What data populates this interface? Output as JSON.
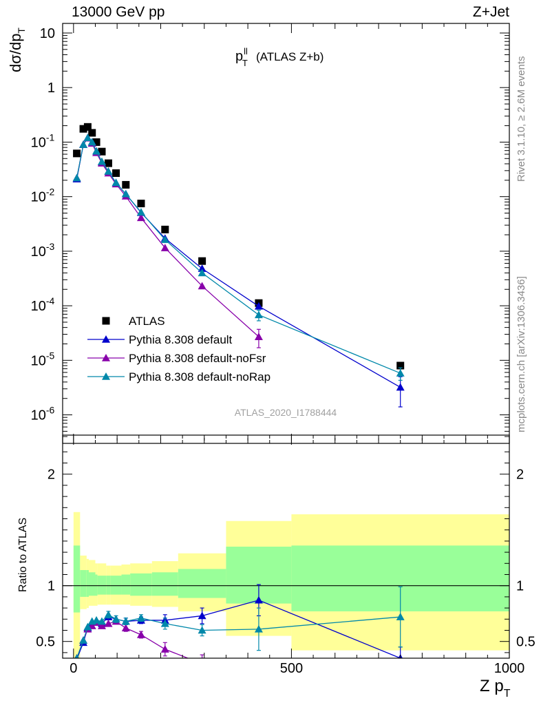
{
  "header": {
    "energy": "13000 GeV pp",
    "process": "Z+Jet"
  },
  "side_labels": {
    "rivet": "Rivet 3.1.10, ≥ 2.6M events",
    "mcplots": "mcplots.cern.ch [arXiv:1306.3436]"
  },
  "watermark": "ATLAS_2020_I1788444",
  "colors": {
    "atlas": "#000000",
    "default": "#0000cc",
    "noFsr": "#8800aa",
    "noRap": "#0088aa",
    "band_stat": "#99ff99",
    "band_total": "#ffff99"
  },
  "chart_data": [
    {
      "type": "scatter",
      "panel": "main",
      "title": "(ATLAS Z+b)",
      "title_symbol": "p_T^ll",
      "ylabel": "dσ/dp_T",
      "ylog": true,
      "ylim": [
        3e-07,
        15
      ],
      "xlim": [
        -25,
        1000
      ],
      "ytick_labels": [
        "10",
        "1",
        "10^-1",
        "10^-2",
        "10^-3",
        "10^-4",
        "10^-5",
        "10^-6"
      ],
      "legend": [
        "ATLAS",
        "Pythia 8.308 default",
        "Pythia 8.308 default-noFsr",
        "Pythia 8.308 default-noRap"
      ],
      "legend_position": "bottom-left",
      "series": [
        {
          "name": "ATLAS",
          "marker": "square",
          "x": [
            7.5,
            22.5,
            32.5,
            42.5,
            52.5,
            65,
            80,
            97.5,
            120,
            155,
            210,
            295,
            425,
            750
          ],
          "y": [
            0.062,
            0.175,
            0.19,
            0.148,
            0.1,
            0.067,
            0.041,
            0.027,
            0.0165,
            0.0075,
            0.0025,
            0.00066,
            0.000112,
            8e-06
          ]
        },
        {
          "name": "Pythia 8.308 default",
          "marker": "triangle",
          "x": [
            7.5,
            22.5,
            32.5,
            42.5,
            52.5,
            65,
            80,
            97.5,
            120,
            155,
            210,
            295,
            425,
            750
          ],
          "y": [
            0.021,
            0.09,
            0.12,
            0.1,
            0.068,
            0.043,
            0.029,
            0.018,
            0.0112,
            0.0051,
            0.00172,
            0.00048,
            9.8e-05,
            3.2e-06
          ],
          "yerr": [
            0,
            0,
            0,
            0,
            0,
            0,
            0,
            0,
            0,
            0,
            0,
            0,
            0,
            1.8e-06
          ]
        },
        {
          "name": "Pythia 8.308 default-noFsr",
          "marker": "triangle",
          "x": [
            7.5,
            22.5,
            32.5,
            42.5,
            52.5,
            65,
            80,
            97.5,
            120,
            155,
            210,
            295,
            425
          ],
          "y": [
            0.022,
            0.09,
            0.118,
            0.095,
            0.064,
            0.041,
            0.027,
            0.017,
            0.0102,
            0.0041,
            0.00115,
            0.00023,
            2.7e-05
          ],
          "yerr": [
            0,
            0,
            0,
            0,
            0,
            0,
            0,
            0,
            0,
            0,
            0,
            0,
            1e-05
          ]
        },
        {
          "name": "Pythia 8.308 default-noRap",
          "marker": "triangle",
          "x": [
            7.5,
            22.5,
            32.5,
            42.5,
            52.5,
            65,
            80,
            97.5,
            120,
            155,
            210,
            295,
            425,
            750
          ],
          "y": [
            0.022,
            0.09,
            0.12,
            0.1,
            0.068,
            0.044,
            0.029,
            0.018,
            0.0112,
            0.0052,
            0.00163,
            0.0004,
            6.8e-05,
            5.8e-06
          ],
          "yerr": [
            0,
            0,
            0,
            0,
            0,
            0,
            0,
            0,
            0,
            0,
            0,
            0,
            1.5e-05,
            1.5e-06
          ]
        }
      ]
    },
    {
      "type": "line",
      "panel": "ratio",
      "ylabel": "Ratio to ATLAS",
      "xlabel": "Z p_T",
      "ylim": [
        0.35,
        2.35
      ],
      "xlim": [
        -25,
        1000
      ],
      "xticks": [
        0,
        500,
        1000
      ],
      "xtick_labels": [
        "0",
        "500",
        "1000"
      ],
      "yticks": [
        0.5,
        1,
        2
      ],
      "ytick_labels": [
        "0.5",
        "1",
        "2"
      ],
      "reference_line": 1,
      "bands": {
        "bins": [
          [
            0,
            15
          ],
          [
            15,
            30
          ],
          [
            30,
            35
          ],
          [
            35,
            50
          ],
          [
            50,
            55
          ],
          [
            55,
            75
          ],
          [
            75,
            85
          ],
          [
            85,
            110
          ],
          [
            110,
            130
          ],
          [
            130,
            180
          ],
          [
            180,
            240
          ],
          [
            240,
            350
          ],
          [
            350,
            500
          ],
          [
            500,
            1000
          ]
        ],
        "stat_low": [
          0.76,
          0.9,
          0.9,
          0.91,
          0.91,
          0.92,
          0.92,
          0.92,
          0.92,
          0.91,
          0.91,
          0.89,
          0.84,
          0.77
        ],
        "stat_high": [
          1.36,
          1.14,
          1.14,
          1.12,
          1.1,
          1.09,
          1.09,
          1.09,
          1.1,
          1.11,
          1.12,
          1.15,
          1.35,
          1.36
        ],
        "total_low": [
          0.35,
          0.79,
          0.8,
          0.82,
          0.82,
          0.83,
          0.83,
          0.83,
          0.83,
          0.82,
          0.81,
          0.77,
          0.55,
          0.42
        ],
        "total_high": [
          1.66,
          1.27,
          1.24,
          1.23,
          1.2,
          1.2,
          1.18,
          1.18,
          1.19,
          1.2,
          1.22,
          1.29,
          1.58,
          1.64
        ]
      },
      "series": [
        {
          "name": "Pythia 8.308 default",
          "x": [
            7.5,
            22.5,
            32.5,
            42.5,
            52.5,
            65,
            80,
            97.5,
            120,
            155,
            210,
            295,
            425,
            750
          ],
          "y": [
            0.34,
            0.49,
            0.62,
            0.67,
            0.68,
            0.66,
            0.72,
            0.7,
            0.68,
            0.69,
            0.69,
            0.73,
            0.87,
            0.35
          ],
          "yerr": [
            0,
            0,
            0,
            0,
            0,
            0,
            0,
            0,
            0.03,
            0.03,
            0.05,
            0.07,
            0.14,
            0.1
          ]
        },
        {
          "name": "Pythia 8.308 default-noFsr",
          "x": [
            7.5,
            22.5,
            32.5,
            42.5,
            52.5,
            65,
            80,
            97.5,
            120,
            155,
            210,
            295
          ],
          "y": [
            0.35,
            0.51,
            0.61,
            0.64,
            0.67,
            0.64,
            0.66,
            0.68,
            0.62,
            0.56,
            0.43,
            0.3
          ],
          "yerr": [
            0,
            0,
            0,
            0,
            0,
            0,
            0,
            0,
            0.03,
            0.03,
            0.06,
            0.08
          ]
        },
        {
          "name": "Pythia 8.308 default-noRap",
          "x": [
            7.5,
            22.5,
            32.5,
            42.5,
            52.5,
            65,
            80,
            97.5,
            120,
            155,
            210,
            295,
            425,
            750
          ],
          "y": [
            0.35,
            0.51,
            0.63,
            0.68,
            0.69,
            0.68,
            0.74,
            0.7,
            0.68,
            0.71,
            0.66,
            0.6,
            0.61,
            0.72
          ],
          "yerr": [
            0,
            0,
            0,
            0,
            0,
            0,
            0.03,
            0.03,
            0.03,
            0.03,
            0.05,
            0.05,
            0.19,
            0.27
          ]
        }
      ]
    }
  ]
}
